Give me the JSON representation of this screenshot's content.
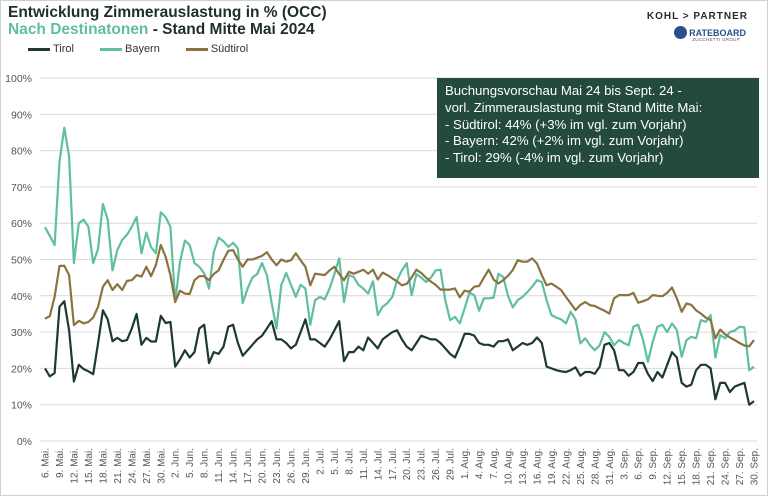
{
  "header": {
    "title": "Entwicklung Zimmerauslastung in % (OCC)",
    "subtitle_highlight": "Nach Destinatonen",
    "subtitle_rest": " - Stand Mitte Mai 2024"
  },
  "logos": {
    "kohl": "KOHL > PARTNER",
    "rateboard": "RATEBOARD",
    "zucchetti": "ZUCCHETTI GROUP"
  },
  "annotation": {
    "lines": [
      "Buchungsvorschau Mai 24 bis Sept. 24 -",
      "vorl. Zimmerauslastung mit Stand Mitte Mai:",
      "- Südtirol:  44% (+3% im vgl. zum Vorjahr)",
      "- Bayern:  42% (+2% im vgl. zum Vorjahr)",
      "- Tirol:  29% (-4% im vgl. zum Vorjahr)"
    ]
  },
  "chart_data": {
    "type": "line",
    "title": "Entwicklung Zimmerauslastung in % (OCC)",
    "ylim": [
      0,
      100
    ],
    "y_ticks": [
      "0%",
      "10%",
      "20%",
      "30%",
      "40%",
      "50%",
      "60%",
      "70%",
      "80%",
      "90%",
      "100%"
    ],
    "x_tick_every": 3,
    "x_ticks": [
      "6. Mai.",
      "9. Mai.",
      "12. Mai.",
      "15. Mai.",
      "18. Mai.",
      "21. Mai.",
      "24. Mai.",
      "27. Mai.",
      "30. Mai.",
      "2. Jun.",
      "5. Jun.",
      "8. Jun.",
      "11. Jun.",
      "14. Jun.",
      "17. Jun.",
      "20. Jun.",
      "23. Jun.",
      "26. Jun.",
      "29. Jun.",
      "2. Jul.",
      "5. Jul.",
      "8. Jul.",
      "11. Jul.",
      "14. Jul.",
      "17. Jul.",
      "20. Jul.",
      "23. Jul.",
      "26. Jul.",
      "29. Jul.",
      "1. Aug.",
      "4. Aug.",
      "7. Aug.",
      "10. Aug.",
      "13. Aug.",
      "16. Aug.",
      "19. Aug.",
      "22. Aug.",
      "25. Aug.",
      "28. Aug.",
      "31. Aug.",
      "3. Sep.",
      "6. Sep.",
      "9. Sep.",
      "12. Sep.",
      "15. Sep.",
      "18. Sep.",
      "21. Sep.",
      "24. Sep.",
      "27. Sep.",
      "30. Sep."
    ],
    "grid": true,
    "legend_position": "top-left",
    "series": [
      {
        "name": "Tirol",
        "color": "#1c3a2e",
        "values": [
          20,
          17.8,
          18.7,
          37,
          38.5,
          30.5,
          16.4,
          21,
          19.8,
          19.2,
          18.4,
          27,
          36,
          33.5,
          27.5,
          28.4,
          27.5,
          27.8,
          31,
          35,
          26.5,
          28.4,
          27.4,
          27.4,
          34.5,
          32.5,
          32.8,
          20.5,
          22.5,
          25,
          23,
          24.5,
          31,
          32,
          21.5,
          24.5,
          24,
          26,
          31.5,
          32,
          27,
          23.5,
          25,
          26.5,
          28,
          29,
          31,
          33,
          28,
          28,
          27,
          25.5,
          26.5,
          30,
          33.5,
          28,
          28,
          27,
          26,
          28,
          30.5,
          33,
          22,
          24.5,
          24.5,
          26,
          25,
          28.5,
          27,
          25.5,
          28,
          29,
          30,
          30.5,
          28,
          26,
          25,
          27,
          29,
          28.5,
          28,
          28,
          27,
          25.5,
          24,
          23,
          26,
          29.5,
          29.5,
          29,
          27,
          26.5,
          26.5,
          26,
          27.5,
          27.5,
          28,
          25,
          26,
          27,
          26.5,
          27,
          28.5,
          27,
          20.5,
          20,
          19.5,
          19.2,
          19,
          19.5,
          20.3,
          18,
          19,
          19,
          18.5,
          20.5,
          26.5,
          27,
          25,
          19.5,
          19.5,
          18,
          19,
          21.5,
          21.5,
          18.5,
          16.5,
          19,
          17.5,
          21,
          24.5,
          23,
          16,
          15,
          15.5,
          19.5,
          21,
          21,
          20,
          11.5,
          16,
          16,
          13.5,
          15,
          15.5,
          16,
          10,
          11
        ]
      },
      {
        "name": "Bayern",
        "color": "#5fbf9f",
        "values": [
          58.9,
          56.5,
          54,
          77,
          86.3,
          78.4,
          49,
          60,
          61,
          59,
          49,
          53,
          65.3,
          61,
          47,
          52.6,
          55.4,
          56.8,
          59,
          61.7,
          51.7,
          57.4,
          53.4,
          51.7,
          63,
          61.7,
          59,
          38.3,
          49.4,
          55.2,
          54,
          49,
          48,
          46.2,
          42,
          52,
          56,
          55,
          53.5,
          54.6,
          53,
          38,
          42,
          45,
          46,
          49,
          45.7,
          38,
          31,
          43,
          46.3,
          43,
          39.7,
          43,
          42,
          32,
          38.8,
          39.7,
          39,
          42,
          46,
          50.3,
          38.3,
          45.7,
          45.2,
          43,
          42,
          40.6,
          44,
          34.7,
          37,
          38,
          39.7,
          44.3,
          47,
          49,
          40.2,
          46,
          45,
          43.8,
          45,
          47,
          47.2,
          38.8,
          33.3,
          34.2,
          32.4,
          36.5,
          40.8,
          40.2,
          35.9,
          39.3,
          39.3,
          39.5,
          46.1,
          45.2,
          40,
          36.8,
          38.8,
          39.7,
          41,
          42.5,
          44.3,
          43.8,
          38.8,
          34.7,
          34,
          33.5,
          32.4,
          35.6,
          33.5,
          26.9,
          28.3,
          26.4,
          25,
          26.4,
          30,
          28.7,
          26.4,
          27.8,
          27,
          26.4,
          31.5,
          32,
          27.8,
          21.8,
          27.3,
          31.5,
          32,
          30,
          32.4,
          30.6,
          23.2,
          27.8,
          28.7,
          28.3,
          33.3,
          32.8,
          34.7,
          23,
          29.2,
          28.3,
          30,
          30.4,
          31.5,
          31.3,
          19.5,
          20.5
        ]
      },
      {
        "name": "Südtirol",
        "color": "#8a7340",
        "values": [
          33.7,
          34.4,
          39.7,
          48.2,
          48.3,
          45.7,
          31.9,
          33.1,
          32.4,
          32.8,
          34,
          37,
          42.5,
          44.3,
          41.6,
          43.2,
          41.6,
          44.1,
          44.3,
          45.7,
          45.3,
          48,
          45.4,
          48.5,
          54,
          50.8,
          45.7,
          38.3,
          41.4,
          40.6,
          40.5,
          44.3,
          45.4,
          45.4,
          44.3,
          46,
          47,
          49.9,
          52.4,
          52.6,
          50,
          48,
          50,
          50,
          50.5,
          51,
          52,
          50,
          48.4,
          50,
          49.4,
          49.8,
          51.7,
          49.8,
          48,
          42.9,
          46.1,
          45.9,
          45.7,
          47,
          48,
          46,
          44.3,
          46.6,
          46.1,
          46.6,
          47.2,
          46.1,
          47.2,
          44.5,
          46.4,
          45.7,
          44.8,
          44,
          42.9,
          43.3,
          45,
          47.2,
          46.3,
          45,
          43.9,
          43,
          41.7,
          41.7,
          41.7,
          42,
          39.6,
          41.4,
          41.1,
          42.5,
          42.7,
          45,
          47.2,
          44.5,
          43.4,
          44.3,
          45.5,
          47.1,
          49.8,
          49.4,
          49.4,
          50.3,
          48.9,
          45.7,
          42.9,
          43.4,
          42.5,
          41.6,
          39.7,
          37.9,
          36.1,
          37.5,
          38.3,
          37.4,
          37.2,
          36.5,
          35.9,
          35.1,
          39.3,
          40.2,
          40.2,
          40.2,
          40.8,
          38.1,
          38.5,
          39,
          40.2,
          40,
          39.9,
          40.8,
          42.3,
          39.3,
          35.6,
          37.9,
          37.5,
          36,
          35.1,
          34,
          33.3,
          28.3,
          30.7,
          29.4,
          28.5,
          27.8,
          27,
          26.3,
          26.1,
          27.8
        ]
      }
    ]
  }
}
